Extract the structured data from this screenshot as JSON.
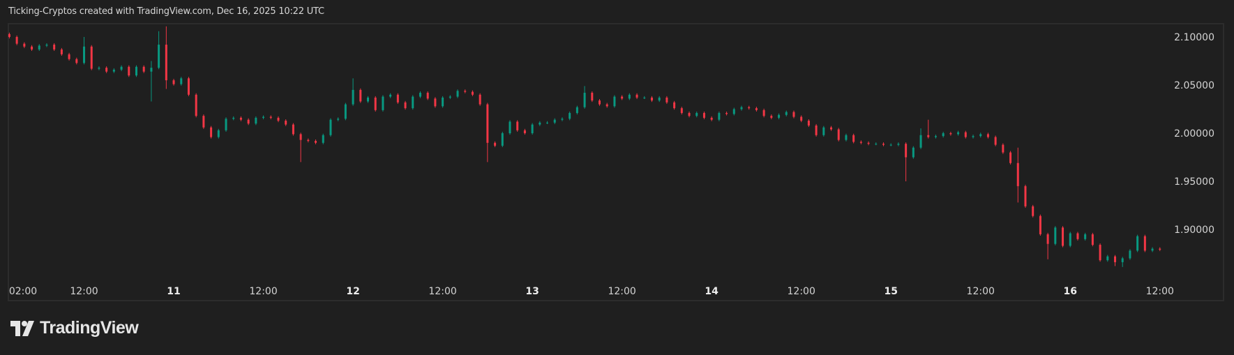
{
  "header": {
    "title": "Ticking-Cryptos created with TradingView.com, Dec 16, 2025 10:22 UTC"
  },
  "brand": {
    "name": "TradingView",
    "logo_icon": "tradingview-logo-icon"
  },
  "colors": {
    "background": "#1f1f1f",
    "up": "#089981",
    "down": "#f23645",
    "text": "#d4d4d4",
    "border": "#2c2c2c"
  },
  "chart_data": {
    "type": "candlestick",
    "title": "",
    "interval": "1h",
    "start": "2025-12-10 02:00",
    "ylim": [
      1.855,
      2.112
    ],
    "yticks": [
      {
        "value": 2.1,
        "label": "2.10000"
      },
      {
        "value": 2.05,
        "label": "2.05000"
      },
      {
        "value": 2.0,
        "label": "2.00000"
      },
      {
        "value": 1.95,
        "label": "1.95000"
      },
      {
        "value": 1.9,
        "label": "1.90000"
      }
    ],
    "xticks": [
      {
        "hour": 2,
        "label": "02:00",
        "day": false
      },
      {
        "hour": 12,
        "label": "12:00",
        "day": false
      },
      {
        "hour": 24,
        "label": "11",
        "day": true
      },
      {
        "hour": 36,
        "label": "12:00",
        "day": false
      },
      {
        "hour": 48,
        "label": "12",
        "day": true
      },
      {
        "hour": 60,
        "label": "12:00",
        "day": false
      },
      {
        "hour": 72,
        "label": "13",
        "day": true
      },
      {
        "hour": 84,
        "label": "12:00",
        "day": false
      },
      {
        "hour": 96,
        "label": "14",
        "day": true
      },
      {
        "hour": 108,
        "label": "12:00",
        "day": false
      },
      {
        "hour": 120,
        "label": "15",
        "day": true
      },
      {
        "hour": 132,
        "label": "12:00",
        "day": false
      },
      {
        "hour": 144,
        "label": "16",
        "day": true
      },
      {
        "hour": 156,
        "label": "12:00",
        "day": false
      }
    ],
    "first_open": 2.103,
    "close": [
      2.1,
      2.093,
      2.09,
      2.087,
      2.091,
      2.092,
      2.087,
      2.082,
      2.077,
      2.073,
      2.09,
      2.067,
      2.068,
      2.064,
      2.066,
      2.069,
      2.06,
      2.069,
      2.064,
      2.068,
      2.092,
      2.055,
      2.051,
      2.057,
      2.04,
      2.018,
      2.006,
      1.996,
      2.003,
      2.015,
      2.016,
      2.014,
      2.01,
      2.016,
      2.017,
      2.016,
      2.013,
      2.009,
      1.999,
      1.993,
      1.992,
      1.99,
      1.998,
      2.014,
      2.015,
      2.03,
      2.045,
      2.033,
      2.037,
      2.024,
      2.038,
      2.04,
      2.032,
      2.026,
      2.038,
      2.042,
      2.036,
      2.028,
      2.037,
      2.038,
      2.044,
      2.043,
      2.04,
      2.03,
      1.99,
      1.987,
      2.0,
      2.012,
      2.003,
      2.0,
      2.009,
      2.011,
      2.011,
      2.014,
      2.015,
      2.021,
      2.027,
      2.042,
      2.034,
      2.03,
      2.028,
      2.038,
      2.036,
      2.04,
      2.037,
      2.037,
      2.034,
      2.037,
      2.032,
      2.026,
      2.021,
      2.018,
      2.021,
      2.016,
      2.014,
      2.021,
      2.02,
      2.025,
      2.027,
      2.026,
      2.024,
      2.018,
      2.016,
      2.019,
      2.022,
      2.017,
      2.013,
      2.008,
      1.998,
      2.006,
      2.004,
      1.993,
      1.998,
      1.991,
      1.99,
      1.989,
      1.989,
      1.988,
      1.988,
      1.989,
      1.975,
      1.985,
      1.998,
      1.996,
      1.997,
      2.0,
      1.999,
      2.001,
      1.996,
      1.997,
      1.999,
      1.996,
      1.988,
      1.98,
      1.969,
      1.945,
      1.924,
      1.914,
      1.895,
      1.885,
      1.902,
      1.883,
      1.896,
      1.89,
      1.895,
      1.884,
      1.868,
      1.872,
      1.866,
      1.87,
      1.878,
      1.893,
      1.878,
      1.88,
      1.879
    ],
    "wicks": [
      {
        "index": 10,
        "high": 2.1
      },
      {
        "index": 19,
        "high": 2.075,
        "low": 2.033
      },
      {
        "index": 20,
        "high": 2.106
      },
      {
        "index": 21,
        "high": 2.111,
        "low": 2.046
      },
      {
        "index": 39,
        "low": 1.97
      },
      {
        "index": 46,
        "high": 2.057
      },
      {
        "index": 64,
        "low": 1.97
      },
      {
        "index": 77,
        "high": 2.049
      },
      {
        "index": 120,
        "low": 1.95
      },
      {
        "index": 122,
        "high": 2.005
      },
      {
        "index": 123,
        "high": 2.014
      },
      {
        "index": 135,
        "high": 1.985,
        "low": 1.928
      },
      {
        "index": 139,
        "low": 1.869
      },
      {
        "index": 148,
        "low": 1.862
      },
      {
        "index": 149,
        "low": 1.861
      }
    ]
  }
}
